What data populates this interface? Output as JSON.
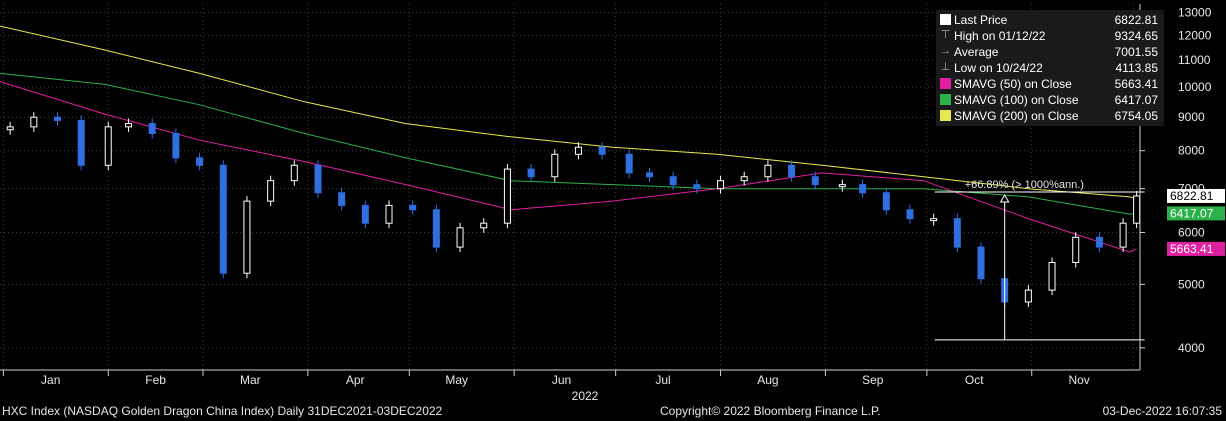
{
  "footer": {
    "left": "HXC Index (NASDAQ Golden Dragon China Index)  Daily 31DEC2021-03DEC2022",
    "center": "Copyright© 2022 Bloomberg Finance L.P.",
    "right": "03-Dec-2022 16:07:35"
  },
  "legend": [
    {
      "label": "Last Price",
      "value": "6822.81",
      "symbol": "box",
      "color": "#ffffff"
    },
    {
      "label": "High on 01/12/22",
      "value": "9324.65",
      "symbol": "high",
      "color": "#aaaaaa"
    },
    {
      "label": "Average",
      "value": "7001.55",
      "symbol": "avg",
      "color": "#aaaaaa"
    },
    {
      "label": "Low on 10/24/22",
      "value": "4113.85",
      "symbol": "low",
      "color": "#aaaaaa"
    },
    {
      "label": "SMAVG (50)  on Close",
      "value": "5663.41",
      "symbol": "box",
      "color": "#e020a0"
    },
    {
      "label": "SMAVG (100)  on Close",
      "value": "6417.07",
      "symbol": "box",
      "color": "#2cb04a"
    },
    {
      "label": "SMAVG (200)  on Close",
      "value": "6754.05",
      "symbol": "box",
      "color": "#e8e850"
    }
  ],
  "chart_data": {
    "type": "line",
    "subtype": "candlestick",
    "xlabel": "2022",
    "x_ticks": [
      "Jan",
      "Feb",
      "Mar",
      "Apr",
      "May",
      "Jun",
      "Jul",
      "Aug",
      "Sep",
      "Oct",
      "Nov"
    ],
    "y_ticks": [
      4000,
      5000,
      6000,
      7000,
      8000,
      9000,
      10000,
      11000,
      12000,
      13000
    ],
    "y_scale": "log",
    "ylim": [
      3700,
      13400
    ],
    "xlim": [
      "2021-12-31",
      "2022-12-03"
    ],
    "annotation": "+66.89% (> 1000%ann.)",
    "price_tags": [
      {
        "value": "6822.81",
        "color": "#ffffff"
      },
      {
        "value": "6417.07",
        "color": "#2cb04a"
      },
      {
        "value": "5663.41",
        "color": "#e020a0"
      }
    ],
    "colors": {
      "up": "#ffffff",
      "down": "#2f6fe0",
      "sma50": "#e020a0",
      "sma100": "#2cb04a",
      "sma200": "#e8e850"
    },
    "price": {
      "dates": [
        "2022-01-03",
        "2022-01-10",
        "2022-01-17",
        "2022-01-24",
        "2022-02-01",
        "2022-02-07",
        "2022-02-14",
        "2022-02-21",
        "2022-02-28",
        "2022-03-07",
        "2022-03-14",
        "2022-03-21",
        "2022-03-28",
        "2022-04-04",
        "2022-04-11",
        "2022-04-18",
        "2022-04-25",
        "2022-05-02",
        "2022-05-09",
        "2022-05-16",
        "2022-05-23",
        "2022-05-30",
        "2022-06-06",
        "2022-06-13",
        "2022-06-20",
        "2022-06-27",
        "2022-07-05",
        "2022-07-11",
        "2022-07-18",
        "2022-07-25",
        "2022-08-01",
        "2022-08-08",
        "2022-08-15",
        "2022-08-22",
        "2022-08-29",
        "2022-09-06",
        "2022-09-12",
        "2022-09-19",
        "2022-09-26",
        "2022-10-03",
        "2022-10-10",
        "2022-10-17",
        "2022-10-24",
        "2022-10-31",
        "2022-11-07",
        "2022-11-14",
        "2022-11-21",
        "2022-11-28",
        "2022-12-02"
      ],
      "values": [
        8700,
        9000,
        8900,
        7600,
        8700,
        8800,
        8500,
        7800,
        7600,
        5200,
        6700,
        7200,
        7600,
        6900,
        6600,
        6200,
        6600,
        6500,
        5700,
        6100,
        6200,
        7500,
        7300,
        7900,
        8100,
        7900,
        7400,
        7300,
        7100,
        7000,
        7200,
        7300,
        7600,
        7300,
        7100,
        7100,
        6900,
        6500,
        6300,
        6300,
        5700,
        5100,
        4700,
        4900,
        5400,
        5900,
        5700,
        6200,
        6822.81
      ]
    },
    "sma50": {
      "dates": [
        "2021-12-31",
        "2022-01-31",
        "2022-02-28",
        "2022-03-31",
        "2022-04-30",
        "2022-05-31",
        "2022-06-30",
        "2022-07-31",
        "2022-08-31",
        "2022-09-30",
        "2022-10-31",
        "2022-11-30",
        "2022-12-02"
      ],
      "values": [
        10200,
        9100,
        8300,
        7700,
        7100,
        6500,
        6700,
        7000,
        7400,
        7200,
        6300,
        5600,
        5663.41
      ]
    },
    "sma100": {
      "dates": [
        "2021-12-31",
        "2022-01-31",
        "2022-02-28",
        "2022-03-31",
        "2022-04-30",
        "2022-05-31",
        "2022-06-30",
        "2022-07-31",
        "2022-08-31",
        "2022-09-30",
        "2022-10-31",
        "2022-11-30",
        "2022-12-02"
      ],
      "values": [
        10500,
        10100,
        9400,
        8500,
        7800,
        7200,
        7100,
        7000,
        7000,
        7000,
        6800,
        6400,
        6417.07
      ]
    },
    "sma200": {
      "dates": [
        "2021-12-31",
        "2022-01-31",
        "2022-02-28",
        "2022-03-31",
        "2022-04-30",
        "2022-05-31",
        "2022-06-30",
        "2022-07-31",
        "2022-08-31",
        "2022-09-30",
        "2022-10-31",
        "2022-11-30",
        "2022-12-02"
      ],
      "values": [
        12400,
        11400,
        10500,
        9500,
        8800,
        8400,
        8100,
        7900,
        7600,
        7300,
        7000,
        6800,
        6754.05
      ]
    }
  }
}
